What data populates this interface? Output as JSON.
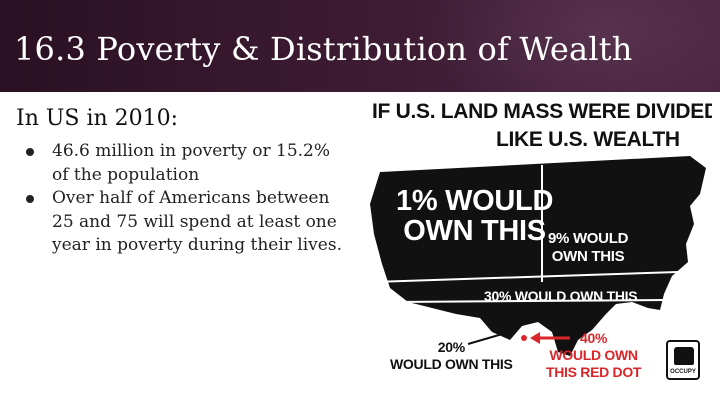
{
  "slide": {
    "title": "16.3 Poverty & Distribution of Wealth",
    "subtitle": "In US in 2010:",
    "bullets": [
      "46.6 million in poverty or 15.2% of the population",
      "Over half of Americans between 25 and 75 will spend at least one year in poverty during their lives."
    ]
  },
  "poster": {
    "headline_line1": "IF U.S. LAND MASS WERE DIVIDED",
    "headline_line2": "LIKE U.S. WEALTH",
    "regions": {
      "one_percent": [
        "1% WOULD",
        "OWN THIS"
      ],
      "nine_percent": [
        "9% WOULD",
        "OWN THIS"
      ],
      "thirty_percent": "30% WOULD OWN THIS",
      "twenty_percent": [
        "20%",
        "WOULD OWN THIS"
      ],
      "forty_percent": [
        "40%",
        "WOULD OWN",
        "THIS RED DOT"
      ]
    },
    "badge_text": "OCCUPY",
    "colors": {
      "map": "#111111",
      "divider": "#ffffff",
      "dot": "#d8262b",
      "header_bg": "#3b1a31"
    }
  }
}
